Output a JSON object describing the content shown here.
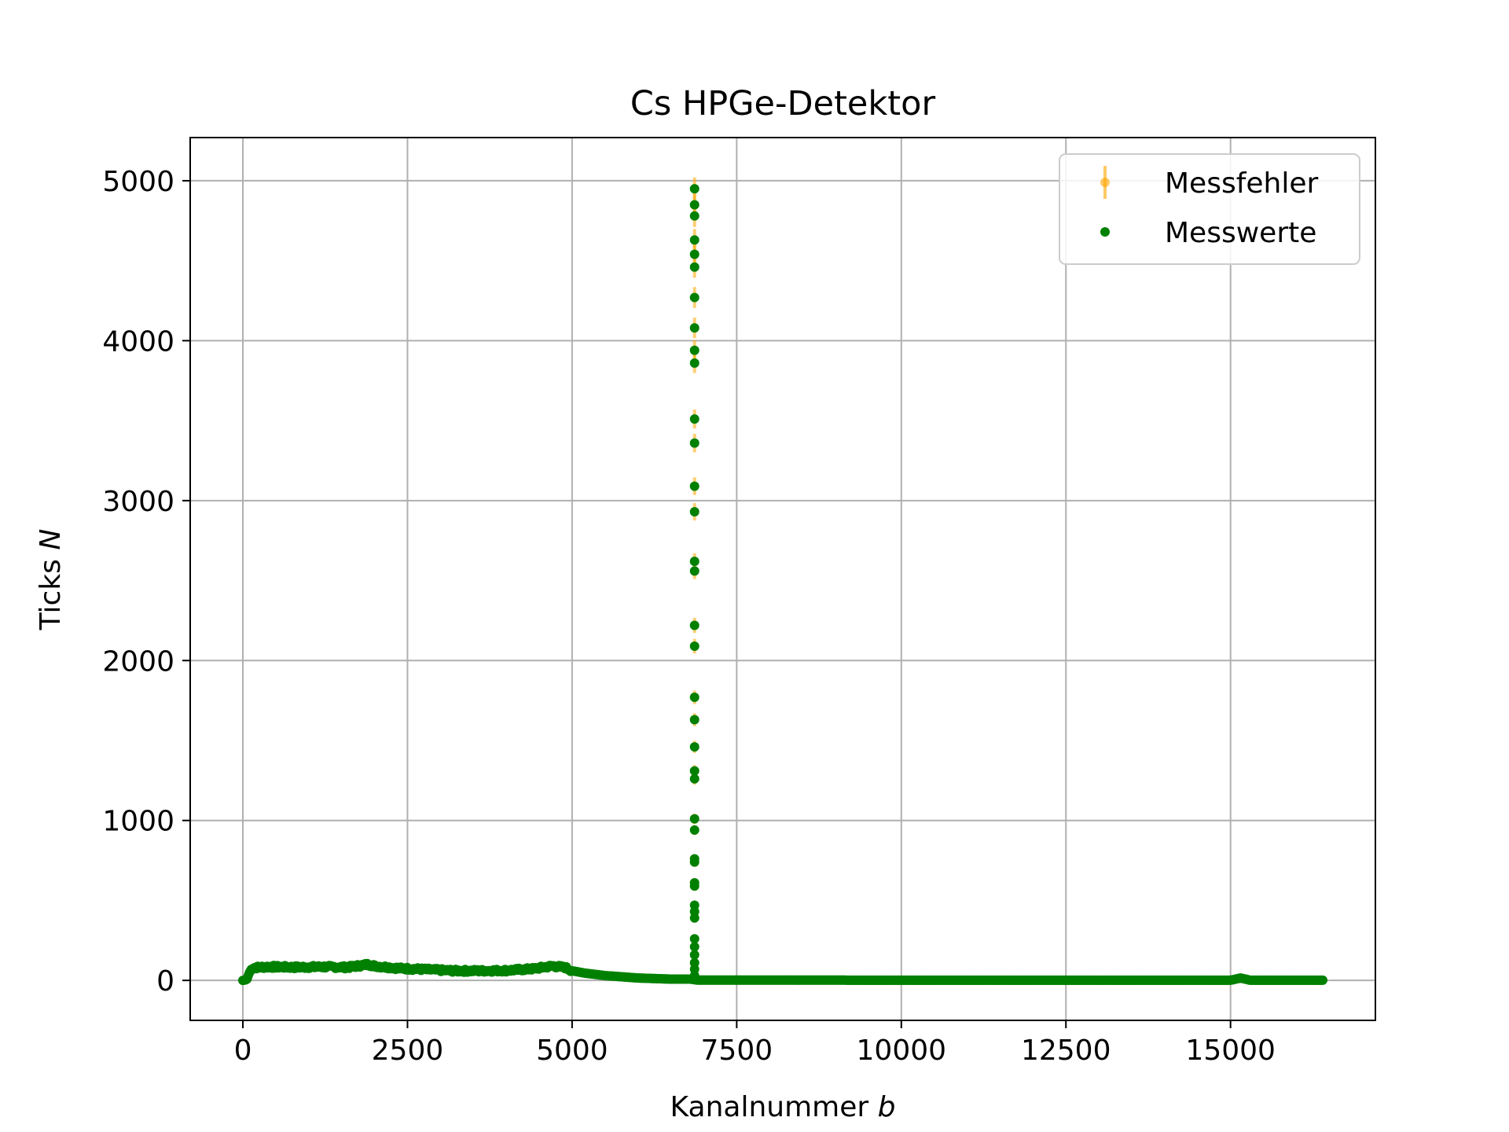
{
  "chart_data": {
    "type": "scatter",
    "title": "Cs HPGe-Detektor",
    "xlabel_text": "Kanalnummer ",
    "xlabel_var": "b",
    "ylabel_text": "Ticks ",
    "ylabel_var": "N",
    "xlim": [
      -800,
      17200
    ],
    "ylim": [
      -250,
      5270
    ],
    "xticks": [
      0,
      2500,
      5000,
      7500,
      10000,
      12500,
      15000
    ],
    "yticks": [
      0,
      1000,
      2000,
      3000,
      4000,
      5000
    ],
    "grid": true,
    "legend_position": "top-right",
    "legend": [
      {
        "label": "Messfehler",
        "color": "#ffa500",
        "kind": "errorbar"
      },
      {
        "label": "Messwerte",
        "color": "#008000",
        "kind": "point"
      }
    ],
    "background_profile": {
      "x": [
        0,
        60,
        100,
        150,
        400,
        800,
        1200,
        1600,
        1900,
        2000,
        2400,
        2800,
        3200,
        3600,
        4000,
        4400,
        4700,
        4900,
        5000,
        5200,
        5500,
        6000,
        6500,
        6800,
        6900,
        8000,
        10000,
        12000,
        15000,
        15150,
        15300,
        16400
      ],
      "y": [
        0,
        5,
        50,
        80,
        85,
        82,
        85,
        82,
        100,
        90,
        75,
        68,
        60,
        60,
        62,
        72,
        90,
        80,
        60,
        45,
        30,
        15,
        8,
        8,
        2,
        2,
        1,
        1,
        1,
        15,
        1,
        1
      ]
    },
    "peak": {
      "x": 6860,
      "y": [
        30,
        70,
        110,
        160,
        210,
        260,
        390,
        430,
        470,
        590,
        610,
        740,
        760,
        940,
        1010,
        1260,
        1310,
        1460,
        1630,
        1770,
        2090,
        2220,
        2560,
        2620,
        2930,
        3090,
        3360,
        3510,
        3860,
        3940,
        4080,
        4270,
        4460,
        4540,
        4630,
        4780,
        4850,
        4950
      ]
    }
  }
}
